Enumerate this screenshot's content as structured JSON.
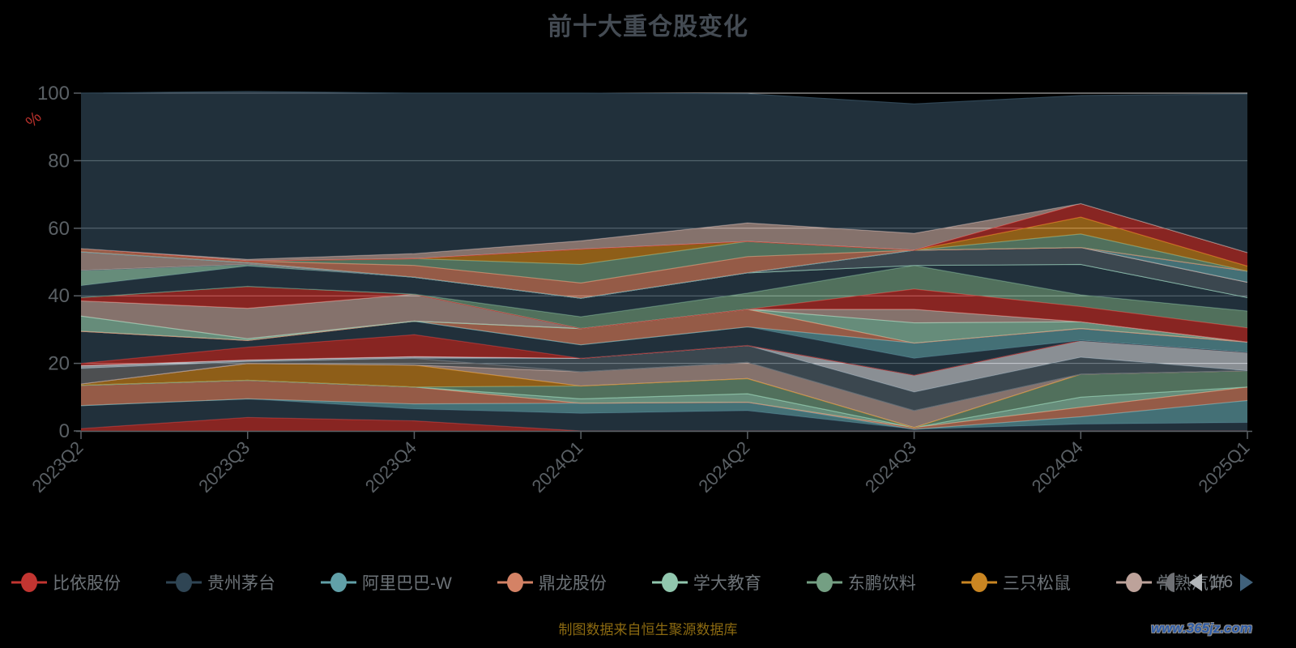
{
  "title": "前十大重仓股变化",
  "footer": {
    "source_note": "制图数据来自恒生聚源数据库"
  },
  "watermark": {
    "text": "www.365jz.com"
  },
  "ui": {
    "background": "#000000",
    "title_color": "#444b53",
    "axis_label_color": "#5a6065",
    "grid_line_color": "#cccccc",
    "axis_line_color": "#5a6065",
    "ylabel_color": "#b9312c",
    "legend_text_color": "#6d7378",
    "legend_overflow_marker_color": "#6e7074",
    "pager_prev_color": "#b4b8bb",
    "pager_next_color": "#40617b",
    "footer_color": "#8c6a11",
    "watermark_color": "#2e5ca8"
  },
  "legend": {
    "items": [
      {
        "label": "比依股份",
        "color": "#c23531"
      },
      {
        "label": "贵州茅台",
        "color": "#2f4554"
      },
      {
        "label": "阿里巴巴-W",
        "color": "#61a0a8"
      },
      {
        "label": "鼎龙股份",
        "color": "#d48265"
      },
      {
        "label": "学大教育",
        "color": "#91c7ae"
      },
      {
        "label": "东鹏饮料",
        "color": "#749f83"
      },
      {
        "label": "三只松鼠",
        "color": "#ca8622"
      },
      {
        "label": "常熟汽饰",
        "color": "#bda29a"
      }
    ],
    "pagination": {
      "current": "1/6"
    }
  },
  "chart_data": {
    "type": "area",
    "stacked": true,
    "normalized": "percent",
    "title": "前十大重仓股变化",
    "xlabel": "",
    "ylabel": "%",
    "ylim": [
      0,
      100
    ],
    "yticks": [
      0,
      20,
      40,
      60,
      80,
      100
    ],
    "grid": true,
    "legend_position": "bottom",
    "categories": [
      "2023Q2",
      "2023Q3",
      "2023Q4",
      "2024Q1",
      "2024Q2",
      "2024Q3",
      "2024Q4",
      "2025Q1"
    ],
    "series": [
      {
        "name": "比依股份",
        "color": "#c23531",
        "values": [
          0.7,
          4,
          3,
          0,
          0,
          0,
          0,
          0
        ]
      },
      {
        "name": "贵州茅台",
        "color": "#2f4554",
        "values": [
          6.8,
          5.5,
          3.5,
          5.2,
          6,
          0.5,
          2,
          2.5
        ]
      },
      {
        "name": "阿里巴巴-W",
        "color": "#61a0a8",
        "values": [
          0,
          0,
          1.5,
          3,
          2.5,
          0,
          2.2,
          6.5
        ]
      },
      {
        "name": "鼎龙股份",
        "color": "#d48265",
        "values": [
          6,
          5.5,
          5,
          0,
          0,
          0.5,
          2.8,
          4
        ]
      },
      {
        "name": "学大教育",
        "color": "#91c7ae",
        "values": [
          0,
          0,
          0,
          1.3,
          2.5,
          0,
          3,
          0
        ]
      },
      {
        "name": "东鹏饮料",
        "color": "#749f83",
        "values": [
          0,
          0,
          0,
          3.8,
          4.5,
          0,
          6.8,
          4.8
        ]
      },
      {
        "name": "三只松鼠",
        "color": "#ca8622",
        "values": [
          0.4,
          5,
          6.5,
          0,
          0,
          0,
          0,
          0
        ]
      },
      {
        "name": "常熟汽饰",
        "color": "#bda29a",
        "values": [
          0,
          0,
          0,
          4.2,
          4.8,
          5,
          0,
          0
        ]
      },
      {
        "name": "",
        "color": "#6e7074",
        "values": [
          4.6,
          0.5,
          2,
          0,
          0,
          0,
          0,
          0
        ]
      },
      {
        "name": "",
        "color": "#546570",
        "values": [
          0,
          0,
          0,
          4,
          5,
          5.5,
          5,
          0
        ]
      },
      {
        "name": "",
        "color": "#c4ccd3",
        "values": [
          0.8,
          0.5,
          0.5,
          0,
          0,
          5,
          5,
          5.5
        ]
      },
      {
        "name": "",
        "color": "#c23531",
        "values": [
          0.7,
          3.8,
          6.5,
          0,
          0,
          0,
          0,
          0
        ]
      },
      {
        "name": "",
        "color": "#2f4554",
        "values": [
          9.5,
          2,
          4,
          4,
          5.5,
          5,
          0,
          0
        ]
      },
      {
        "name": "",
        "color": "#61a0a8",
        "values": [
          0,
          0,
          0,
          0,
          0,
          4.5,
          3.5,
          3
        ]
      },
      {
        "name": "",
        "color": "#d48265",
        "values": [
          0,
          0,
          0,
          4.8,
          5.2,
          0,
          0,
          0
        ]
      },
      {
        "name": "",
        "color": "#91c7ae",
        "values": [
          4.5,
          0.5,
          0,
          0,
          0,
          6,
          2,
          0
        ]
      },
      {
        "name": "",
        "color": "#bda29a",
        "values": [
          4.5,
          9,
          8,
          0,
          0,
          4,
          0,
          0
        ]
      },
      {
        "name": "",
        "color": "#c23531",
        "values": [
          1,
          6.5,
          0,
          0,
          0,
          6,
          4.5,
          4.2
        ]
      },
      {
        "name": "",
        "color": "#749f83",
        "values": [
          0,
          0,
          0,
          3.5,
          4.8,
          7,
          3.5,
          5
        ]
      },
      {
        "name": "",
        "color": "#2f4554",
        "values": [
          3.5,
          6,
          5,
          5.5,
          6,
          0,
          9,
          4
        ]
      },
      {
        "name": "",
        "color": "#91c7ae",
        "values": [
          4.5,
          0.5,
          0,
          0,
          0,
          0,
          0,
          0
        ]
      },
      {
        "name": "",
        "color": "#546570",
        "values": [
          0,
          0,
          0,
          0,
          0,
          4.5,
          5,
          4.5
        ]
      },
      {
        "name": "",
        "color": "#bda29a",
        "values": [
          5.5,
          0.5,
          0,
          0,
          0,
          0,
          0,
          0
        ]
      },
      {
        "name": "",
        "color": "#61a0a8",
        "values": [
          0,
          0,
          0,
          0,
          0,
          0,
          0,
          3.3
        ]
      },
      {
        "name": "",
        "color": "#d48265",
        "values": [
          1,
          0.5,
          3.5,
          4.5,
          4.8,
          0,
          0,
          0
        ]
      },
      {
        "name": "",
        "color": "#749f83",
        "values": [
          0,
          0,
          2,
          5.5,
          4.5,
          0,
          4,
          0
        ]
      },
      {
        "name": "",
        "color": "#ca8622",
        "values": [
          0,
          0,
          0,
          4.5,
          0,
          0,
          5,
          1.5
        ]
      },
      {
        "name": "",
        "color": "#c23531",
        "values": [
          0,
          0,
          0,
          0,
          0,
          0,
          4,
          4
        ]
      },
      {
        "name": "",
        "color": "#bda29a",
        "values": [
          0,
          0.5,
          1.5,
          2.5,
          5.5,
          5,
          0,
          0
        ]
      },
      {
        "name": "",
        "color": "#2f4554",
        "values": [
          46,
          49.7,
          47.5,
          43.7,
          38.2,
          38.3,
          32,
          46.9
        ]
      }
    ]
  }
}
